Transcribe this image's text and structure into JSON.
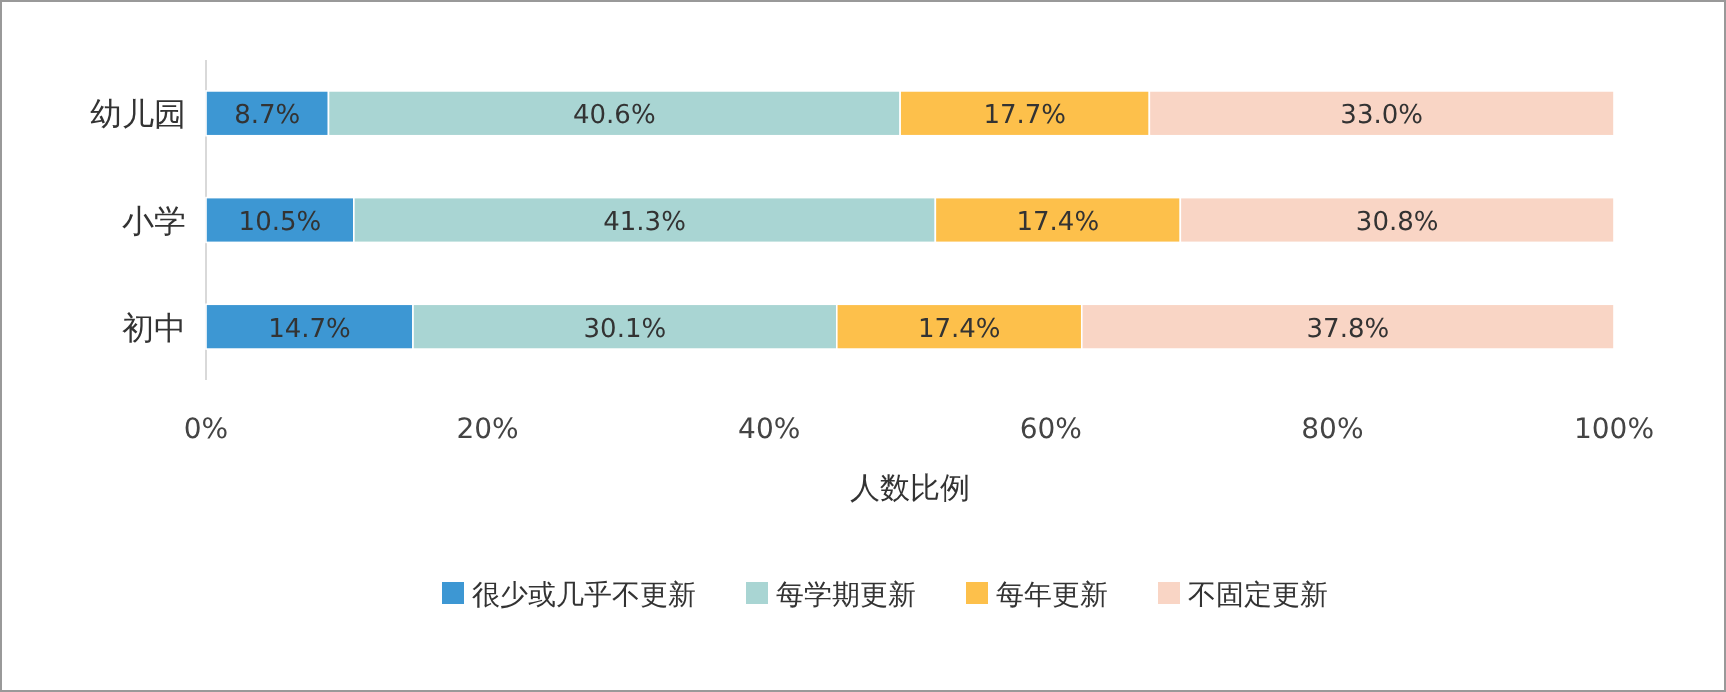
{
  "chart_data": {
    "type": "bar",
    "orientation": "horizontal",
    "stacked": true,
    "xlabel": "人数比例",
    "categories": [
      "幼儿园",
      "小学",
      "初中"
    ],
    "xlim": [
      0,
      100
    ],
    "xticks": [
      {
        "value": 0,
        "label": "0%"
      },
      {
        "value": 20,
        "label": "20%"
      },
      {
        "value": 40,
        "label": "40%"
      },
      {
        "value": 60,
        "label": "60%"
      },
      {
        "value": 80,
        "label": "80%"
      },
      {
        "value": 100,
        "label": "100%"
      }
    ],
    "series": [
      {
        "name": "很少或几乎不更新",
        "color": "#3d97d3",
        "values": [
          8.7,
          10.5,
          14.7
        ],
        "value_labels": [
          "8.7%",
          "10.5%",
          "14.7%"
        ]
      },
      {
        "name": "每学期更新",
        "color": "#a9d5d3",
        "values": [
          40.6,
          41.3,
          30.1
        ],
        "value_labels": [
          "40.6%",
          "41.3%",
          "30.1%"
        ]
      },
      {
        "name": "每年更新",
        "color": "#fdc04b",
        "values": [
          17.7,
          17.4,
          17.4
        ],
        "value_labels": [
          "17.7%",
          "17.4%",
          "17.4%"
        ]
      },
      {
        "name": "不固定更新",
        "color": "#f9d5c5",
        "values": [
          33.0,
          30.8,
          37.8
        ],
        "value_labels": [
          "33.0%",
          "30.8%",
          "37.8%"
        ]
      }
    ],
    "legend": "bottom",
    "grid": false
  }
}
